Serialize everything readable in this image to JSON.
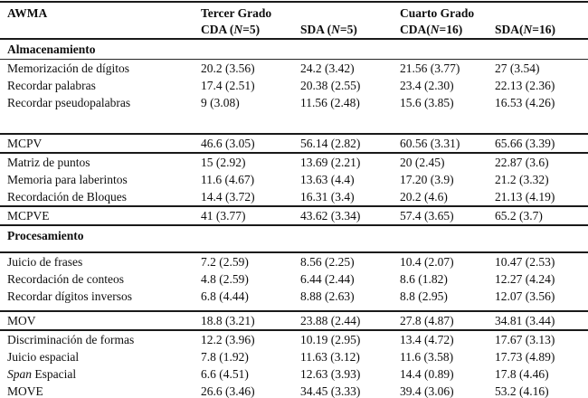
{
  "table": {
    "corner": "AWMA",
    "groups": [
      {
        "label": "Tercer Grado"
      },
      {
        "label": "Cuarto Grado"
      }
    ],
    "columns": [
      {
        "pre": "CDA (",
        "n": "N",
        "post": "=5)"
      },
      {
        "pre": "SDA (",
        "n": "N",
        "post": "=5)"
      },
      {
        "pre": "CDA(",
        "n": "N",
        "post": "=16)"
      },
      {
        "pre": "SDA(",
        "n": "N",
        "post": "=16)"
      }
    ],
    "sections": [
      {
        "header": "Almacenamiento",
        "rows": [
          {
            "label": "Memorización de dígitos",
            "cells": [
              "20.2 (3.56)",
              "24.2 (3.42)",
              "21.56 (3.77)",
              "27 (3.54)"
            ]
          },
          {
            "label": "Recordar palabras",
            "cells": [
              "17.4 (2.51)",
              "20.38 (2.55)",
              "23.4 (2.30)",
              "22.13 (2.36)"
            ]
          },
          {
            "label": "Recordar pseudopalabras",
            "cells": [
              "9 (3.08)",
              "11.56 (2.48)",
              "15.6 (3.85)",
              "16.53 (4.26)"
            ]
          },
          {
            "label": "MCPV",
            "cells": [
              "46.6 (3.05)",
              "56.14 (2.82)",
              "60.56 (3.31)",
              "65.66 (3.39)"
            ]
          },
          {
            "label": "Matriz de puntos",
            "cells": [
              "15 (2.92)",
              "13.69 (2.21)",
              "20 (2.45)",
              "22.87 (3.6)"
            ]
          },
          {
            "label": "Memoria para laberintos",
            "cells": [
              "11.6 (4.67)",
              "13.63 (4.4)",
              "17.20 (3.9)",
              "21.2 (3.32)"
            ]
          },
          {
            "label": "Recordación de Bloques",
            "cells": [
              "14.4 (3.72)",
              "16.31 (3.4)",
              "20.2 (4.6)",
              "21.13 (4.19)"
            ]
          },
          {
            "label": "MCPVE",
            "cells": [
              "41 (3.77)",
              "43.62 (3.34)",
              "57.4 (3.65)",
              "65.2 (3.7)"
            ]
          }
        ]
      },
      {
        "header": "Procesamiento",
        "rows": [
          {
            "label": "Juicio de frases",
            "cells": [
              "7.2 (2.59)",
              "8.56 (2.25)",
              "10.4 (2.07)",
              "10.47 (2.53)"
            ]
          },
          {
            "label": "Recordación de conteos",
            "cells": [
              "4.8 (2.59)",
              "6.44 (2.44)",
              "8.6 (1.82)",
              "12.27 (4.24)"
            ]
          },
          {
            "label": "Recordar dígitos inversos",
            "cells": [
              "6.8 (4.44)",
              "8.88 (2.63)",
              "8.8 (2.95)",
              "12.07 (3.56)"
            ]
          },
          {
            "label": "MOV",
            "cells": [
              "18.8 (3.21)",
              "23.88 (2.44)",
              "27.8 (4.87)",
              "34.81 (3.44)"
            ]
          },
          {
            "label": "Discriminación de formas",
            "cells": [
              "12.2 (3.96)",
              "10.19 (2.95)",
              "13.4 (4.72)",
              "17.67 (3.13)"
            ]
          },
          {
            "label": "Juicio espacial",
            "cells": [
              "7.8 (1.92)",
              "11.63 (3.12)",
              "11.6 (3.58)",
              "17.73 (4.89)"
            ]
          },
          {
            "label_italic": "Span",
            "label": " Espacial",
            "cells": [
              "6.6 (4.51)",
              "12.63 (3.93)",
              "14.4 (0.89)",
              "17.8 (4.46)"
            ]
          },
          {
            "label": "MOVE",
            "cells": [
              "26.6 (3.46)",
              "34.45 (3.33)",
              "39.4 (3.06)",
              "53.2 (4.16)"
            ]
          }
        ]
      }
    ]
  }
}
